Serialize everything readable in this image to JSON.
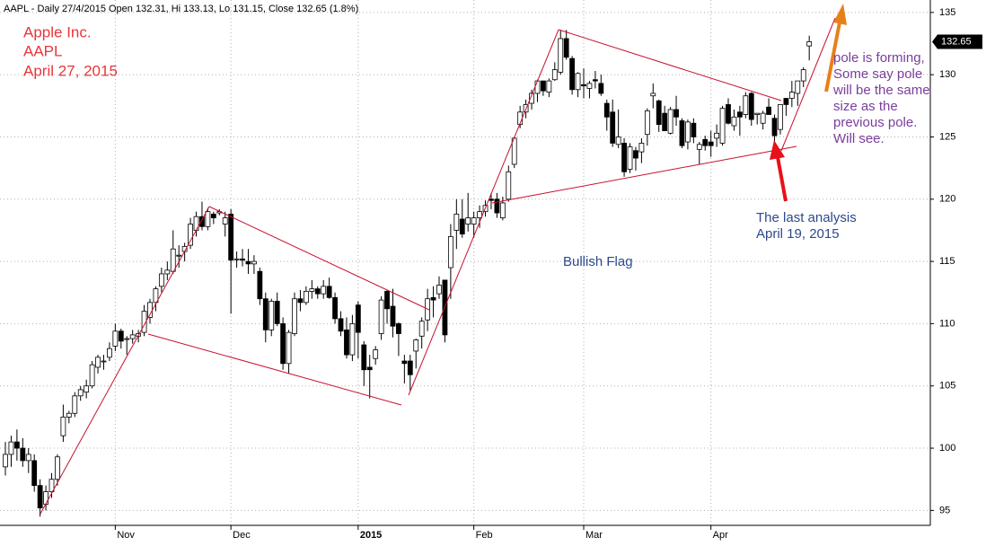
{
  "chart_data": {
    "type": "candlestick",
    "title": "AAPL - Daily 27/4/2015 Open 132.31, Hi 133.13, Lo 131.15, Close 132.65 (1.8%)",
    "annotations": {
      "company": [
        "Apple Inc.",
        "AAPL",
        "April 27, 2015"
      ],
      "pattern": "Bullish Flag",
      "last_analysis": [
        "The last analysis",
        "April 19, 2015"
      ],
      "pole_note": [
        "pole is forming,",
        "Some say pole",
        "will be the same",
        "size as the",
        "previous pole.",
        "Will see."
      ]
    },
    "last_price": 132.65,
    "ylim": [
      93.8,
      136.0
    ],
    "yticks": [
      95,
      100,
      105,
      110,
      115,
      120,
      125,
      130,
      135
    ],
    "grid": true,
    "up_color": "#ffffff",
    "down_color": "#000000",
    "categories": [
      null,
      null,
      null,
      null,
      null,
      null,
      null,
      null,
      null,
      null,
      null,
      null,
      null,
      null,
      null,
      null,
      null,
      null,
      null,
      "Nov",
      null,
      null,
      null,
      null,
      null,
      null,
      null,
      null,
      null,
      null,
      null,
      null,
      null,
      null,
      null,
      null,
      null,
      null,
      null,
      "Dec",
      null,
      null,
      null,
      null,
      null,
      null,
      null,
      null,
      null,
      null,
      null,
      null,
      null,
      null,
      null,
      null,
      null,
      null,
      null,
      null,
      null,
      "2015",
      null,
      null,
      null,
      null,
      null,
      null,
      null,
      null,
      null,
      null,
      null,
      null,
      null,
      null,
      null,
      null,
      null,
      null,
      null,
      "Feb",
      null,
      null,
      null,
      null,
      null,
      null,
      null,
      null,
      null,
      null,
      null,
      null,
      null,
      null,
      null,
      null,
      null,
      null,
      "Mar",
      null,
      null,
      null,
      null,
      null,
      null,
      null,
      null,
      null,
      null,
      null,
      null,
      null,
      null,
      null,
      null,
      null,
      null,
      null,
      null,
      null,
      "Apr",
      null,
      null,
      null,
      null,
      null,
      null,
      null,
      null,
      null,
      null,
      null,
      null,
      null,
      null,
      null,
      null,
      null
    ],
    "ohlc": [
      [
        98.5,
        100.5,
        97.8,
        99.5
      ],
      [
        99.5,
        101,
        98.5,
        100.5
      ],
      [
        100.5,
        101.5,
        99,
        100
      ],
      [
        100,
        100.8,
        98.5,
        99
      ],
      [
        99,
        100,
        98,
        99.5
      ],
      [
        99,
        99.5,
        96.5,
        97
      ],
      [
        97,
        97.5,
        94.5,
        95.2
      ],
      [
        95.5,
        97,
        95,
        96.5
      ],
      [
        96.5,
        98,
        96,
        97.5
      ],
      [
        97.5,
        99.5,
        97,
        99.3
      ],
      [
        101,
        103.5,
        100.5,
        102.5
      ],
      [
        102.5,
        103,
        102,
        102.8
      ],
      [
        102.8,
        104.5,
        102.5,
        104.2
      ],
      [
        104.2,
        105,
        103.8,
        104.7
      ],
      [
        104.5,
        105.5,
        104,
        105
      ],
      [
        105,
        107,
        104.8,
        106.7
      ],
      [
        106.5,
        107.5,
        106,
        107.3
      ],
      [
        107,
        107.5,
        106.3,
        107
      ],
      [
        107.3,
        108.5,
        107,
        108
      ],
      [
        108.2,
        110,
        107.8,
        109.4
      ],
      [
        109.4,
        109.6,
        108,
        108.6
      ],
      [
        108.8,
        109,
        107.5,
        108.8
      ],
      [
        108.8,
        109.5,
        108.4,
        109.1
      ],
      [
        109,
        109.5,
        108.5,
        109.2
      ],
      [
        109.3,
        111.5,
        109,
        111
      ],
      [
        110.5,
        112,
        110,
        111.7
      ],
      [
        111.7,
        113,
        111,
        112.8
      ],
      [
        113,
        114.5,
        112.5,
        114
      ],
      [
        114,
        115,
        113.5,
        114.3
      ],
      [
        114.2,
        117.5,
        114,
        116
      ],
      [
        115.5,
        116.3,
        114.5,
        115.5
      ],
      [
        115.8,
        116.5,
        115,
        116.2
      ],
      [
        116.3,
        118.5,
        116,
        118
      ],
      [
        117.5,
        119,
        117,
        118.6
      ],
      [
        118.6,
        119.8,
        117.5,
        117.8
      ],
      [
        117.8,
        119.3,
        117.5,
        119
      ],
      [
        118.8,
        119,
        118,
        118.5
      ],
      [
        118.9,
        119.2,
        118.7,
        119
      ],
      [
        118,
        119,
        117,
        118.5
      ],
      [
        118.8,
        119.2,
        110.8,
        115.1
      ],
      [
        115.2,
        115.8,
        114.5,
        115.2
      ],
      [
        115.2,
        116,
        114.6,
        115.1
      ],
      [
        115,
        116,
        114,
        114.8
      ],
      [
        114.8,
        115.5,
        114,
        115
      ],
      [
        114.2,
        114.5,
        111.5,
        112
      ],
      [
        112,
        112.5,
        108.5,
        109.5
      ],
      [
        109.5,
        112,
        109,
        111.8
      ],
      [
        111.8,
        112.5,
        109.8,
        110
      ],
      [
        110,
        110.5,
        106.3,
        106.8
      ],
      [
        106.8,
        109.5,
        106,
        109.3
      ],
      [
        109.2,
        112.5,
        109,
        112
      ],
      [
        112,
        112.7,
        111,
        111.7
      ],
      [
        111.7,
        113,
        111.5,
        112.6
      ],
      [
        112.6,
        113.5,
        112,
        112.8
      ],
      [
        112.8,
        113,
        112,
        112.4
      ],
      [
        112.4,
        113.5,
        112,
        113
      ],
      [
        113,
        113.7,
        112,
        112.1
      ],
      [
        112.1,
        112.5,
        110,
        110.4
      ],
      [
        110.4,
        111,
        109,
        109.4
      ],
      [
        109.5,
        110.5,
        107.2,
        107.5
      ],
      [
        107.5,
        110.7,
        107,
        110
      ],
      [
        111.5,
        111.8,
        107.2,
        109.3
      ],
      [
        108.3,
        108.6,
        105,
        106.3
      ],
      [
        106.5,
        107.5,
        104,
        106.3
      ],
      [
        107.2,
        108.2,
        106.7,
        107.9
      ],
      [
        109.2,
        112.2,
        108.7,
        111.9
      ],
      [
        112.6,
        112.7,
        110,
        111.2
      ],
      [
        111.4,
        112.8,
        108.9,
        109.8
      ],
      [
        110,
        110.1,
        107.4,
        109.2
      ],
      [
        107,
        107.5,
        105.2,
        106.8
      ],
      [
        107,
        107.5,
        104.6,
        105.9
      ],
      [
        107.8,
        108.8,
        106.4,
        108.7
      ],
      [
        109,
        110.5,
        108,
        110.2
      ],
      [
        110.3,
        112.8,
        109.4,
        112
      ],
      [
        112.1,
        113,
        110.5,
        111.9
      ],
      [
        112.4,
        113.8,
        112,
        113.1
      ],
      [
        113.5,
        113.5,
        108.5,
        109.1
      ],
      [
        114.5,
        118,
        112,
        117
      ],
      [
        117.5,
        120,
        116,
        118.8
      ],
      [
        118.4,
        120,
        116.9,
        117.2
      ],
      [
        118,
        120.5,
        117.4,
        118.5
      ],
      [
        118,
        119,
        116.9,
        118.5
      ],
      [
        118.5,
        119.5,
        117.7,
        119
      ],
      [
        119,
        119.9,
        118.6,
        119.5
      ],
      [
        120,
        120.5,
        119.2,
        119.9
      ],
      [
        120,
        120.5,
        118.5,
        118.9
      ],
      [
        118.5,
        120.2,
        118.3,
        119.7
      ],
      [
        120,
        122.7,
        119.8,
        122.2
      ],
      [
        122.8,
        125,
        122.5,
        124.9
      ],
      [
        126,
        127.5,
        125.7,
        127
      ],
      [
        127,
        128,
        126.5,
        127.6
      ],
      [
        127.7,
        128.8,
        127.2,
        128.5
      ],
      [
        128.5,
        129.6,
        127.8,
        129.5
      ],
      [
        129.5,
        129.5,
        128.3,
        128.7
      ],
      [
        128.6,
        129.7,
        128.2,
        129.5
      ],
      [
        129.6,
        131,
        129.5,
        130.4
      ],
      [
        130.2,
        133.6,
        130,
        132.9
      ],
      [
        132.9,
        133.6,
        131.2,
        131.4
      ],
      [
        131.3,
        131.5,
        128.4,
        128.8
      ],
      [
        128.8,
        130.2,
        128.2,
        130.1
      ],
      [
        129.2,
        130.5,
        128.1,
        129.1
      ],
      [
        128.9,
        129.5,
        128.1,
        129.3
      ],
      [
        129.6,
        130.3,
        128.9,
        129.5
      ],
      [
        129.3,
        130,
        128.3,
        128.5
      ],
      [
        127.7,
        128,
        125.5,
        126.6
      ],
      [
        127,
        128,
        124.2,
        124.5
      ],
      [
        124.4,
        127.2,
        124.1,
        125
      ],
      [
        124.5,
        124.9,
        121.8,
        122.2
      ],
      [
        122.4,
        124.5,
        122.1,
        124.2
      ],
      [
        123.9,
        124.2,
        122.3,
        123.3
      ],
      [
        123.8,
        124.9,
        122.9,
        124.5
      ],
      [
        125.2,
        127.3,
        124.3,
        127.1
      ],
      [
        128.3,
        129.3,
        127.3,
        128.5
      ],
      [
        127.9,
        128,
        125.4,
        126
      ],
      [
        126.9,
        127.5,
        125.5,
        125.5
      ],
      [
        125.3,
        127.4,
        125.2,
        127.2
      ],
      [
        127.2,
        128.3,
        125.9,
        126.6
      ],
      [
        126.3,
        126.5,
        124.1,
        124.3
      ],
      [
        124.6,
        126.4,
        124,
        126.2
      ],
      [
        126.1,
        126.5,
        124.5,
        125
      ],
      [
        124,
        124.6,
        122.8,
        124.4
      ],
      [
        124.8,
        125.1,
        123.9,
        124.3
      ],
      [
        124.6,
        125.5,
        123.4,
        124.3
      ],
      [
        124.9,
        126,
        124.2,
        125.3
      ],
      [
        124.5,
        127.5,
        124.3,
        127.3
      ],
      [
        127.6,
        128.1,
        126,
        126.1
      ],
      [
        125.9,
        127.2,
        125.5,
        126.6
      ],
      [
        127,
        127.5,
        125.1,
        126.6
      ],
      [
        126.8,
        128.6,
        126.5,
        128.3
      ],
      [
        128.5,
        128.6,
        125.9,
        126.4
      ],
      [
        126.8,
        126.9,
        126,
        126.9
      ],
      [
        126.1,
        127.1,
        125.6,
        126.9
      ],
      [
        127.4,
        128.1,
        126.8,
        126.8
      ],
      [
        126.5,
        126.8,
        124.5,
        125.1
      ],
      [
        125.6,
        127.6,
        125.2,
        127.6
      ],
      [
        128.1,
        128.1,
        126.7,
        127.6
      ],
      [
        128.1,
        129.5,
        127.4,
        128.6
      ],
      [
        128.5,
        129.5,
        127.5,
        129.5
      ],
      [
        129.5,
        130.6,
        129,
        130.4
      ],
      [
        132.31,
        133.13,
        131.15,
        132.65
      ]
    ]
  }
}
